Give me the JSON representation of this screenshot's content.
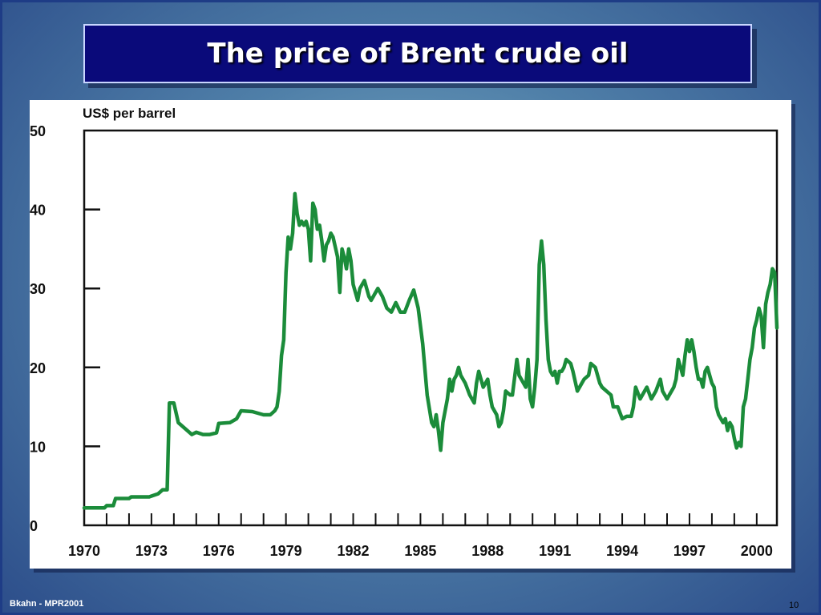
{
  "slide": {
    "title": "The price of Brent crude oil",
    "footer_left": "Bkahn - MPR2001",
    "page_number": "10"
  },
  "colors": {
    "line": "#1b8c3a",
    "title_bg": "#0a0a7a",
    "panel_bg": "#ffffff"
  },
  "chart_data": {
    "type": "line",
    "title": "",
    "ylabel": "US$ per barrel",
    "xlabel": "",
    "xlim": [
      1970,
      2000.9
    ],
    "ylim": [
      0,
      50
    ],
    "y_ticks": [
      0,
      10,
      20,
      30,
      40,
      50
    ],
    "x_ticks": [
      1970,
      1973,
      1976,
      1979,
      1982,
      1985,
      1988,
      1991,
      1994,
      1997,
      2000
    ],
    "grid": false,
    "series": [
      {
        "x": [
          1970.0,
          1970.9,
          1971.0,
          1971.3,
          1971.4,
          1972.0,
          1972.1,
          1972.9,
          1973.0,
          1973.3,
          1973.5,
          1973.6,
          1973.7,
          1973.8,
          1974.0,
          1974.2,
          1974.8,
          1975.0,
          1975.3,
          1975.6,
          1975.9,
          1976.0,
          1976.5,
          1976.8,
          1977.0,
          1977.5,
          1978.0,
          1978.3,
          1978.5,
          1978.6,
          1978.7,
          1978.8,
          1978.9,
          1979.0,
          1979.1,
          1979.2,
          1979.3,
          1979.4,
          1979.5,
          1979.6,
          1979.7,
          1979.8,
          1979.9,
          1980.0,
          1980.1,
          1980.2,
          1980.3,
          1980.4,
          1980.5,
          1980.6,
          1980.7,
          1980.8,
          1980.9,
          1981.0,
          1981.1,
          1981.3,
          1981.4,
          1981.5,
          1981.6,
          1981.7,
          1981.8,
          1981.9,
          1982.0,
          1982.1,
          1982.2,
          1982.3,
          1982.4,
          1982.5,
          1982.6,
          1982.7,
          1982.8,
          1982.9,
          1983.0,
          1983.1,
          1983.3,
          1983.5,
          1983.7,
          1983.9,
          1984.1,
          1984.3,
          1984.5,
          1984.7,
          1984.9,
          1985.1,
          1985.3,
          1985.5,
          1985.6,
          1985.7,
          1985.8,
          1985.9,
          1986.0,
          1986.1,
          1986.2,
          1986.3,
          1986.4,
          1986.5,
          1986.6,
          1986.7,
          1986.8,
          1986.9,
          1987.0,
          1987.2,
          1987.4,
          1987.5,
          1987.6,
          1987.8,
          1988.0,
          1988.1,
          1988.2,
          1988.4,
          1988.5,
          1988.6,
          1988.7,
          1988.8,
          1989.0,
          1989.1,
          1989.3,
          1989.4,
          1989.5,
          1989.7,
          1989.8,
          1989.9,
          1990.0,
          1990.1,
          1990.2,
          1990.3,
          1990.4,
          1990.5,
          1990.6,
          1990.7,
          1990.8,
          1990.9,
          1991.0,
          1991.1,
          1991.2,
          1991.3,
          1991.4,
          1991.5,
          1991.7,
          1991.8,
          1992.0,
          1992.2,
          1992.3,
          1992.5,
          1992.6,
          1992.8,
          1993.0,
          1993.1,
          1993.3,
          1993.5,
          1993.6,
          1993.8,
          1994.0,
          1994.2,
          1994.4,
          1994.5,
          1994.6,
          1994.8,
          1995.0,
          1995.1,
          1995.3,
          1995.5,
          1995.7,
          1995.8,
          1996.0,
          1996.1,
          1996.3,
          1996.4,
          1996.5,
          1996.6,
          1996.7,
          1996.8,
          1996.9,
          1997.0,
          1997.1,
          1997.2,
          1997.3,
          1997.4,
          1997.5,
          1997.6,
          1997.7,
          1997.8,
          1998.0,
          1998.1,
          1998.2,
          1998.3,
          1998.4,
          1998.5,
          1998.6,
          1998.7,
          1998.8,
          1998.9,
          1999.0,
          1999.1,
          1999.2,
          1999.3,
          1999.4,
          1999.5,
          1999.6,
          1999.7,
          1999.8,
          1999.9,
          2000.0,
          2000.1,
          2000.2,
          2000.3,
          2000.4,
          2000.5,
          2000.6,
          2000.7,
          2000.8,
          2000.9
        ],
        "values": [
          2.2,
          2.2,
          2.5,
          2.5,
          3.4,
          3.4,
          3.6,
          3.6,
          3.7,
          4.0,
          4.5,
          4.5,
          4.5,
          15.5,
          15.5,
          13.0,
          11.5,
          11.8,
          11.5,
          11.5,
          11.7,
          12.9,
          13.0,
          13.5,
          14.5,
          14.4,
          14.0,
          14.0,
          14.5,
          15.0,
          17.0,
          21.5,
          23.5,
          32.0,
          36.5,
          35.0,
          37.0,
          42.0,
          39.5,
          38.0,
          38.5,
          38.0,
          38.5,
          37.5,
          33.5,
          40.8,
          40.0,
          37.5,
          38.0,
          36.0,
          33.5,
          35.5,
          36.0,
          37.0,
          36.5,
          34.0,
          29.5,
          35.0,
          34.0,
          32.5,
          35.0,
          33.5,
          30.5,
          29.5,
          28.5,
          30.0,
          30.5,
          31.0,
          30.0,
          29.0,
          28.5,
          29.0,
          29.5,
          30.0,
          29.0,
          27.5,
          27.0,
          28.2,
          27.0,
          27.0,
          28.5,
          29.8,
          27.5,
          23.0,
          16.5,
          13.0,
          12.5,
          14.0,
          12.0,
          9.5,
          13.0,
          14.5,
          16.0,
          18.5,
          17.0,
          18.5,
          19.0,
          20.0,
          19.0,
          18.5,
          18.0,
          16.5,
          15.5,
          18.0,
          19.5,
          17.5,
          18.5,
          16.5,
          15.0,
          14.0,
          12.5,
          13.0,
          14.5,
          17.0,
          16.5,
          16.5,
          21.0,
          19.0,
          18.5,
          17.5,
          21.0,
          16.0,
          15.0,
          17.5,
          21.0,
          33.0,
          36.0,
          33.0,
          26.0,
          21.0,
          19.5,
          19.0,
          19.5,
          18.0,
          19.5,
          19.5,
          20.0,
          21.0,
          20.5,
          19.5,
          17.0,
          18.0,
          18.5,
          19.0,
          20.5,
          20.0,
          18.0,
          17.5,
          17.0,
          16.5,
          15.0,
          15.0,
          13.5,
          13.8,
          13.8,
          15.0,
          17.5,
          16.0,
          17.0,
          17.5,
          16.0,
          17.0,
          18.5,
          17.0,
          16.0,
          16.5,
          17.5,
          18.5,
          21.0,
          20.0,
          19.0,
          21.5,
          23.5,
          22.0,
          23.5,
          22.0,
          20.0,
          18.5,
          18.5,
          17.5,
          19.5,
          20.0,
          18.0,
          17.5,
          15.0,
          14.0,
          13.5,
          13.0,
          13.5,
          12.0,
          13.0,
          12.5,
          11.0,
          9.8,
          10.5,
          10.0,
          15.0,
          16.0,
          18.5,
          21.0,
          22.5,
          25.0,
          26.0,
          27.5,
          26.5,
          22.5,
          28.0,
          29.5,
          30.5,
          32.5,
          32.0,
          25.0
        ]
      }
    ]
  }
}
